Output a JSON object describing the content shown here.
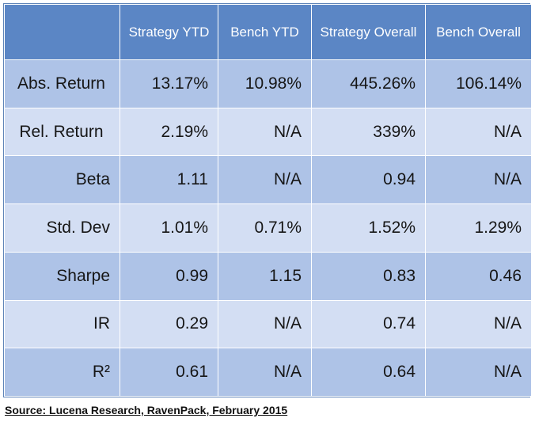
{
  "chart_data": {
    "type": "table",
    "columns": [
      "",
      "Strategy YTD",
      "Bench YTD",
      "Strategy Overall",
      "Bench Overall"
    ],
    "rows": [
      {
        "label": "Abs. Return",
        "values": [
          "13.17%",
          "10.98%",
          "445.26%",
          "106.14%"
        ]
      },
      {
        "label": "Rel. Return",
        "values": [
          "2.19%",
          "N/A",
          "339%",
          "N/A"
        ]
      },
      {
        "label": "Beta",
        "values": [
          "1.11",
          "N/A",
          "0.94",
          "N/A"
        ]
      },
      {
        "label": "Std. Dev",
        "values": [
          "1.01%",
          "0.71%",
          "1.52%",
          "1.29%"
        ]
      },
      {
        "label": "Sharpe",
        "values": [
          "0.99",
          "1.15",
          "0.83",
          "0.46"
        ]
      },
      {
        "label": "IR",
        "values": [
          "0.29",
          "N/A",
          "0.74",
          "N/A"
        ]
      },
      {
        "label": "R²",
        "values": [
          "0.61",
          "N/A",
          "0.64",
          "N/A"
        ]
      }
    ],
    "source": "Source: Lucena Research, RavenPack, February 2015"
  },
  "colors": {
    "header": "#5b86c5",
    "row_dark": "#aec3e7",
    "row_light": "#d3def3"
  }
}
